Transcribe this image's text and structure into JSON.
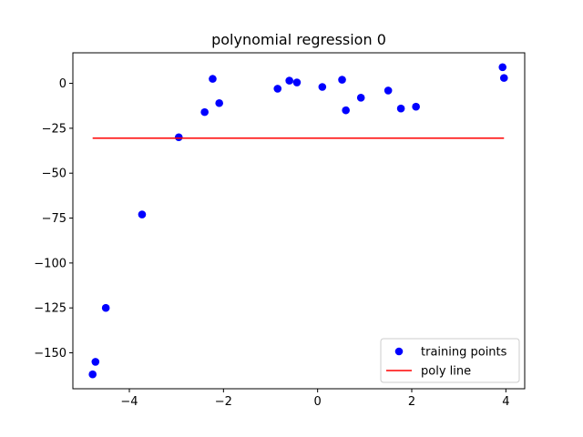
{
  "chart_data": {
    "type": "scatter",
    "title": "polynomial regression 0",
    "xlabel": "",
    "ylabel": "",
    "xlim": [
      -5.2,
      4.4
    ],
    "ylim": [
      -170,
      17
    ],
    "xticks": [
      -4,
      -2,
      0,
      2,
      4
    ],
    "yticks": [
      0,
      -25,
      -50,
      -75,
      -100,
      -125,
      -150
    ],
    "ytick_labels": [
      "0",
      "−25",
      "−50",
      "−75",
      "−100",
      "−125",
      "−150"
    ],
    "xtick_labels": [
      "−4",
      "−2",
      "0",
      "2",
      "4"
    ],
    "grid": false,
    "legend_position": "lower-right",
    "series": [
      {
        "name": "training points",
        "kind": "scatter",
        "color": "#0000ff",
        "points": [
          {
            "x": -4.78,
            "y": -162
          },
          {
            "x": -4.72,
            "y": -155
          },
          {
            "x": -4.5,
            "y": -125
          },
          {
            "x": -3.73,
            "y": -73
          },
          {
            "x": -2.95,
            "y": -30
          },
          {
            "x": -2.4,
            "y": -16
          },
          {
            "x": -2.23,
            "y": 2.5
          },
          {
            "x": -2.09,
            "y": -11
          },
          {
            "x": -0.85,
            "y": -3
          },
          {
            "x": -0.6,
            "y": 1.5
          },
          {
            "x": -0.44,
            "y": 0.5
          },
          {
            "x": 0.1,
            "y": -2
          },
          {
            "x": 0.52,
            "y": 2
          },
          {
            "x": 0.6,
            "y": -15
          },
          {
            "x": 0.92,
            "y": -8
          },
          {
            "x": 1.5,
            "y": -4
          },
          {
            "x": 1.77,
            "y": -14
          },
          {
            "x": 2.09,
            "y": -13
          },
          {
            "x": 3.93,
            "y": 9
          },
          {
            "x": 3.96,
            "y": 3
          }
        ]
      },
      {
        "name": "poly line",
        "kind": "line",
        "color": "#ff0000",
        "points": [
          {
            "x": -4.78,
            "y": -30.5
          },
          {
            "x": 3.96,
            "y": -30.5
          }
        ]
      }
    ]
  }
}
